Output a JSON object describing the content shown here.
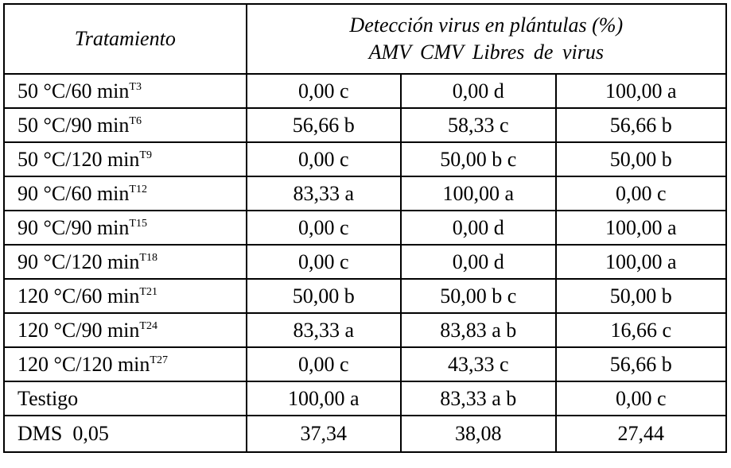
{
  "table": {
    "header": {
      "col1": "Tratamiento",
      "title": "Detección virus en plántulas (%)",
      "subtitle": "AMV CMV Libres de virus"
    },
    "rows": [
      {
        "treatment": "50 °C/60 min",
        "sup": "T3",
        "cells": [
          "0,00 c",
          "0,00 d",
          "100,00 a"
        ]
      },
      {
        "treatment": "50 °C/90 min",
        "sup": "T6",
        "cells": [
          "56,66 b",
          "58,33 c",
          "56,66 b"
        ]
      },
      {
        "treatment": "50 °C/120 min",
        "sup": "T9",
        "cells": [
          "0,00 c",
          "50,00 b c",
          "50,00 b"
        ]
      },
      {
        "treatment": "90 °C/60 min",
        "sup": "T12",
        "cells": [
          "83,33 a",
          "100,00 a",
          "0,00 c"
        ]
      },
      {
        "treatment": "90 °C/90 min",
        "sup": "T15",
        "cells": [
          "0,00 c",
          "0,00 d",
          "100,00 a"
        ]
      },
      {
        "treatment": "90 °C/120 min",
        "sup": "T18",
        "cells": [
          "0,00 c",
          "0,00 d",
          "100,00 a"
        ]
      },
      {
        "treatment": "120 °C/60 min",
        "sup": "T21",
        "cells": [
          "50,00 b",
          "50,00 b c",
          "50,00 b"
        ]
      },
      {
        "treatment": "120 °C/90 min",
        "sup": "T24",
        "cells": [
          "83,33 a",
          "83,83 a b",
          "16,66 c"
        ]
      },
      {
        "treatment": "120 °C/120 min",
        "sup": "T27",
        "cells": [
          "0,00 c",
          "43,33 c",
          "56,66 b"
        ]
      },
      {
        "treatment": "Testigo",
        "cells": [
          "100,00 a",
          "83,33 a b",
          "0,00 c"
        ]
      },
      {
        "treatment": "DMS  0,05",
        "cells": [
          "37,34",
          "38,08",
          "27,44"
        ]
      }
    ]
  }
}
